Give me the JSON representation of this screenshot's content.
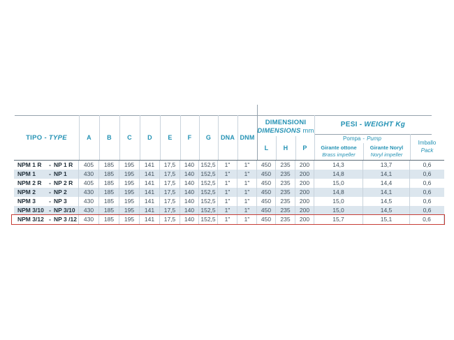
{
  "colors": {
    "accent_teal": "#2492b4",
    "label_dark": "#22303b",
    "value_text": "#41505c",
    "stripe": "#dce6ee",
    "grid_light": "#c9d3dc",
    "grid_medium": "#95a2ad",
    "grid_dark": "#5c6c78",
    "highlight_red": "#c63d36"
  },
  "table": {
    "type_header": {
      "it": "TIPO",
      "sep": "-",
      "en": "TYPE"
    },
    "letter_columns": [
      "A",
      "B",
      "C",
      "D",
      "E",
      "F",
      "G",
      "DNA",
      "DNM"
    ],
    "dimensions_group": {
      "title_it": "DIMENSIONI",
      "title_en": "DIMENSIONS",
      "unit": "mm",
      "sub_columns": [
        "L",
        "H",
        "P"
      ]
    },
    "weight_group": {
      "title_it": "PESI",
      "sep": "-",
      "title_en": "WEIGHT Kg",
      "pump_group": {
        "it": "Pompa",
        "sep": "-",
        "en": "Pump"
      },
      "brass_col": {
        "it": "Girante ottone",
        "en": "Brass impeller"
      },
      "noryl_col": {
        "it": "Girante Noryl",
        "en": "Noryl impeller"
      }
    },
    "pack_col": {
      "it": "Imballo",
      "en": "Pack"
    },
    "model_separator": "-",
    "rows": [
      {
        "model_it": "NPM 1 R",
        "model_en": "NP 1 R",
        "a": "405",
        "b": "185",
        "c": "195",
        "d": "141",
        "e": "17,5",
        "f": "140",
        "g": "152,5",
        "dna": "1\"",
        "dnm": "1\"",
        "l": "450",
        "h": "235",
        "p": "200",
        "brass": "14,3",
        "noryl": "13,7",
        "pack": "0,6",
        "highlighted": false
      },
      {
        "model_it": "NPM 1",
        "model_en": "NP 1",
        "a": "430",
        "b": "185",
        "c": "195",
        "d": "141",
        "e": "17,5",
        "f": "140",
        "g": "152,5",
        "dna": "1\"",
        "dnm": "1\"",
        "l": "450",
        "h": "235",
        "p": "200",
        "brass": "14,8",
        "noryl": "14,1",
        "pack": "0,6",
        "highlighted": false
      },
      {
        "model_it": "NPM 2 R",
        "model_en": "NP 2 R",
        "a": "405",
        "b": "185",
        "c": "195",
        "d": "141",
        "e": "17,5",
        "f": "140",
        "g": "152,5",
        "dna": "1\"",
        "dnm": "1\"",
        "l": "450",
        "h": "235",
        "p": "200",
        "brass": "15,0",
        "noryl": "14,4",
        "pack": "0,6",
        "highlighted": false
      },
      {
        "model_it": "NPM 2",
        "model_en": "NP 2",
        "a": "430",
        "b": "185",
        "c": "195",
        "d": "141",
        "e": "17,5",
        "f": "140",
        "g": "152,5",
        "dna": "1\"",
        "dnm": "1\"",
        "l": "450",
        "h": "235",
        "p": "200",
        "brass": "14,8",
        "noryl": "14,1",
        "pack": "0,6",
        "highlighted": false
      },
      {
        "model_it": "NPM 3",
        "model_en": "NP 3",
        "a": "430",
        "b": "185",
        "c": "195",
        "d": "141",
        "e": "17,5",
        "f": "140",
        "g": "152,5",
        "dna": "1\"",
        "dnm": "1\"",
        "l": "450",
        "h": "235",
        "p": "200",
        "brass": "15,0",
        "noryl": "14,5",
        "pack": "0,6",
        "highlighted": false
      },
      {
        "model_it": "NPM 3/10",
        "model_en": "NP 3/10",
        "a": "430",
        "b": "185",
        "c": "195",
        "d": "141",
        "e": "17,5",
        "f": "140",
        "g": "152,5",
        "dna": "1\"",
        "dnm": "1\"",
        "l": "450",
        "h": "235",
        "p": "200",
        "brass": "15,0",
        "noryl": "14,5",
        "pack": "0,6",
        "highlighted": false
      },
      {
        "model_it": "NPM 3/12",
        "model_en": "NP 3 /12",
        "a": "430",
        "b": "185",
        "c": "195",
        "d": "141",
        "e": "17,5",
        "f": "140",
        "g": "152,5",
        "dna": "1\"",
        "dnm": "1\"",
        "l": "450",
        "h": "235",
        "p": "200",
        "brass": "15,7",
        "noryl": "15,1",
        "pack": "0,6",
        "highlighted": true
      }
    ]
  }
}
